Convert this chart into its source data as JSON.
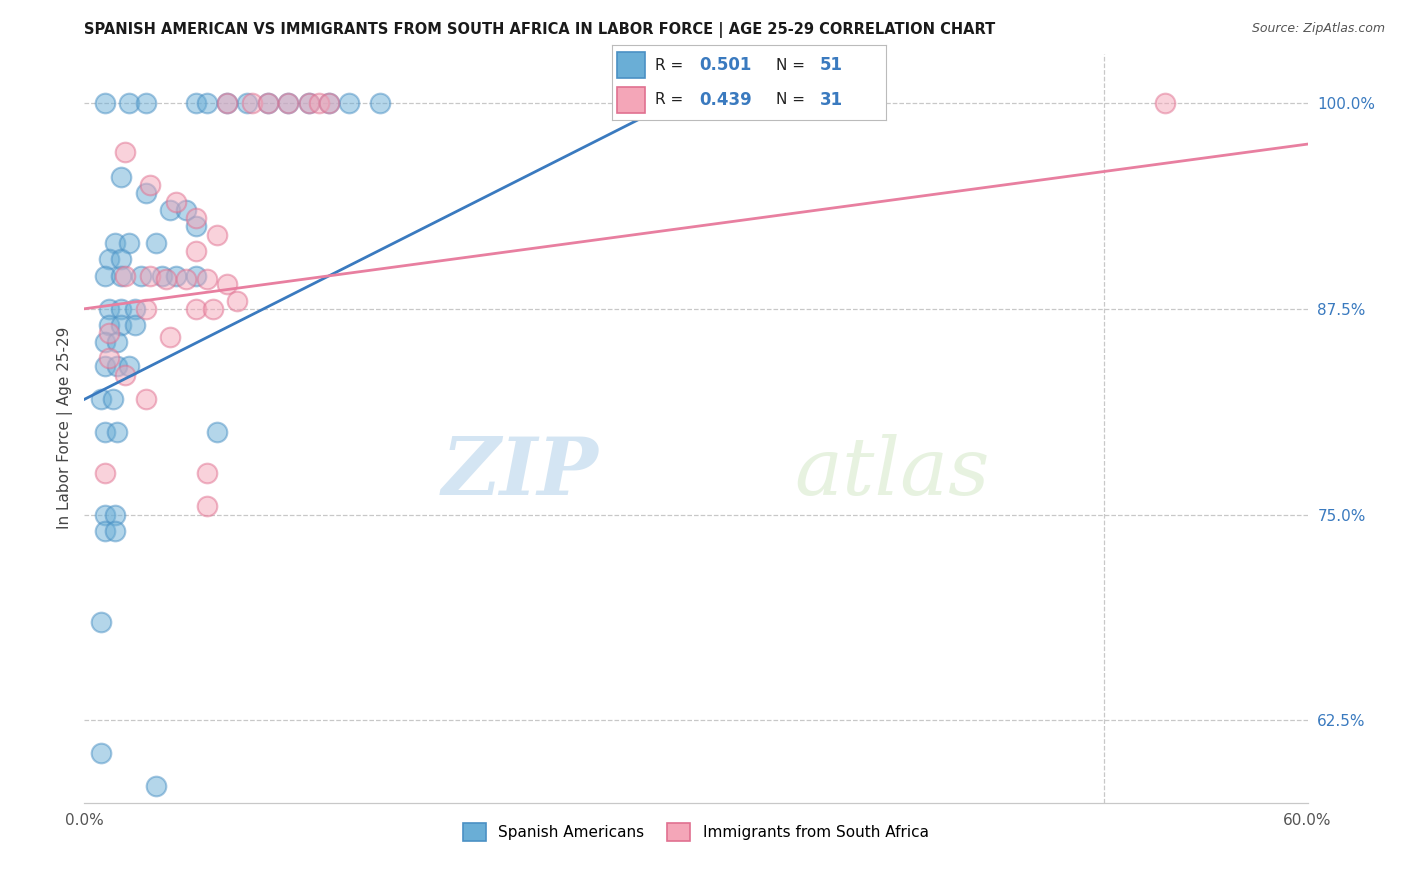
{
  "title": "SPANISH AMERICAN VS IMMIGRANTS FROM SOUTH AFRICA IN LABOR FORCE | AGE 25-29 CORRELATION CHART",
  "source": "Source: ZipAtlas.com",
  "ylabel": "In Labor Force | Age 25-29",
  "xlim": [
    0.0,
    0.6
  ],
  "ylim": [
    0.575,
    1.03
  ],
  "xticks": [
    0.0,
    0.1,
    0.2,
    0.3,
    0.4,
    0.5,
    0.6
  ],
  "xticklabels": [
    "0.0%",
    "",
    "",
    "",
    "",
    "",
    "60.0%"
  ],
  "yticks": [
    0.625,
    0.75,
    0.875,
    1.0
  ],
  "yticklabels": [
    "62.5%",
    "75.0%",
    "87.5%",
    "100.0%"
  ],
  "blue_R": 0.501,
  "blue_N": 51,
  "pink_R": 0.439,
  "pink_N": 31,
  "watermark_zip": "ZIP",
  "watermark_atlas": "atlas",
  "blue_color": "#6aaed6",
  "blue_edge": "#4a90c4",
  "pink_color": "#f4a6b8",
  "pink_edge": "#e07090",
  "blue_line_color": "#3a7abf",
  "pink_line_color": "#e87fa0",
  "blue_scatter": [
    [
      0.01,
      1.0
    ],
    [
      0.022,
      1.0
    ],
    [
      0.03,
      1.0
    ],
    [
      0.055,
      1.0
    ],
    [
      0.06,
      1.0
    ],
    [
      0.07,
      1.0
    ],
    [
      0.08,
      1.0
    ],
    [
      0.09,
      1.0
    ],
    [
      0.1,
      1.0
    ],
    [
      0.11,
      1.0
    ],
    [
      0.12,
      1.0
    ],
    [
      0.13,
      1.0
    ],
    [
      0.145,
      1.0
    ],
    [
      0.018,
      0.955
    ],
    [
      0.03,
      0.945
    ],
    [
      0.042,
      0.935
    ],
    [
      0.05,
      0.935
    ],
    [
      0.055,
      0.925
    ],
    [
      0.015,
      0.915
    ],
    [
      0.022,
      0.915
    ],
    [
      0.035,
      0.915
    ],
    [
      0.012,
      0.905
    ],
    [
      0.018,
      0.905
    ],
    [
      0.01,
      0.895
    ],
    [
      0.018,
      0.895
    ],
    [
      0.028,
      0.895
    ],
    [
      0.038,
      0.895
    ],
    [
      0.045,
      0.895
    ],
    [
      0.055,
      0.895
    ],
    [
      0.012,
      0.875
    ],
    [
      0.018,
      0.875
    ],
    [
      0.025,
      0.875
    ],
    [
      0.012,
      0.865
    ],
    [
      0.018,
      0.865
    ],
    [
      0.025,
      0.865
    ],
    [
      0.01,
      0.855
    ],
    [
      0.016,
      0.855
    ],
    [
      0.01,
      0.84
    ],
    [
      0.016,
      0.84
    ],
    [
      0.022,
      0.84
    ],
    [
      0.008,
      0.82
    ],
    [
      0.014,
      0.82
    ],
    [
      0.01,
      0.8
    ],
    [
      0.016,
      0.8
    ],
    [
      0.065,
      0.8
    ],
    [
      0.01,
      0.75
    ],
    [
      0.015,
      0.75
    ],
    [
      0.01,
      0.74
    ],
    [
      0.015,
      0.74
    ],
    [
      0.008,
      0.685
    ],
    [
      0.008,
      0.605
    ],
    [
      0.035,
      0.585
    ]
  ],
  "pink_scatter": [
    [
      0.07,
      1.0
    ],
    [
      0.082,
      1.0
    ],
    [
      0.09,
      1.0
    ],
    [
      0.1,
      1.0
    ],
    [
      0.11,
      1.0
    ],
    [
      0.115,
      1.0
    ],
    [
      0.12,
      1.0
    ],
    [
      0.53,
      1.0
    ],
    [
      0.02,
      0.97
    ],
    [
      0.032,
      0.95
    ],
    [
      0.045,
      0.94
    ],
    [
      0.055,
      0.93
    ],
    [
      0.065,
      0.92
    ],
    [
      0.055,
      0.91
    ],
    [
      0.02,
      0.895
    ],
    [
      0.032,
      0.895
    ],
    [
      0.04,
      0.893
    ],
    [
      0.05,
      0.893
    ],
    [
      0.06,
      0.893
    ],
    [
      0.07,
      0.89
    ],
    [
      0.075,
      0.88
    ],
    [
      0.03,
      0.875
    ],
    [
      0.055,
      0.875
    ],
    [
      0.063,
      0.875
    ],
    [
      0.012,
      0.86
    ],
    [
      0.042,
      0.858
    ],
    [
      0.012,
      0.845
    ],
    [
      0.02,
      0.835
    ],
    [
      0.03,
      0.82
    ],
    [
      0.01,
      0.775
    ],
    [
      0.06,
      0.775
    ],
    [
      0.06,
      0.755
    ]
  ],
  "blue_line": {
    "x0": 0.0,
    "y0": 0.82,
    "x1": 0.32,
    "y1": 1.02
  },
  "pink_line": {
    "x0": 0.0,
    "y0": 0.875,
    "x1": 0.6,
    "y1": 0.975
  }
}
